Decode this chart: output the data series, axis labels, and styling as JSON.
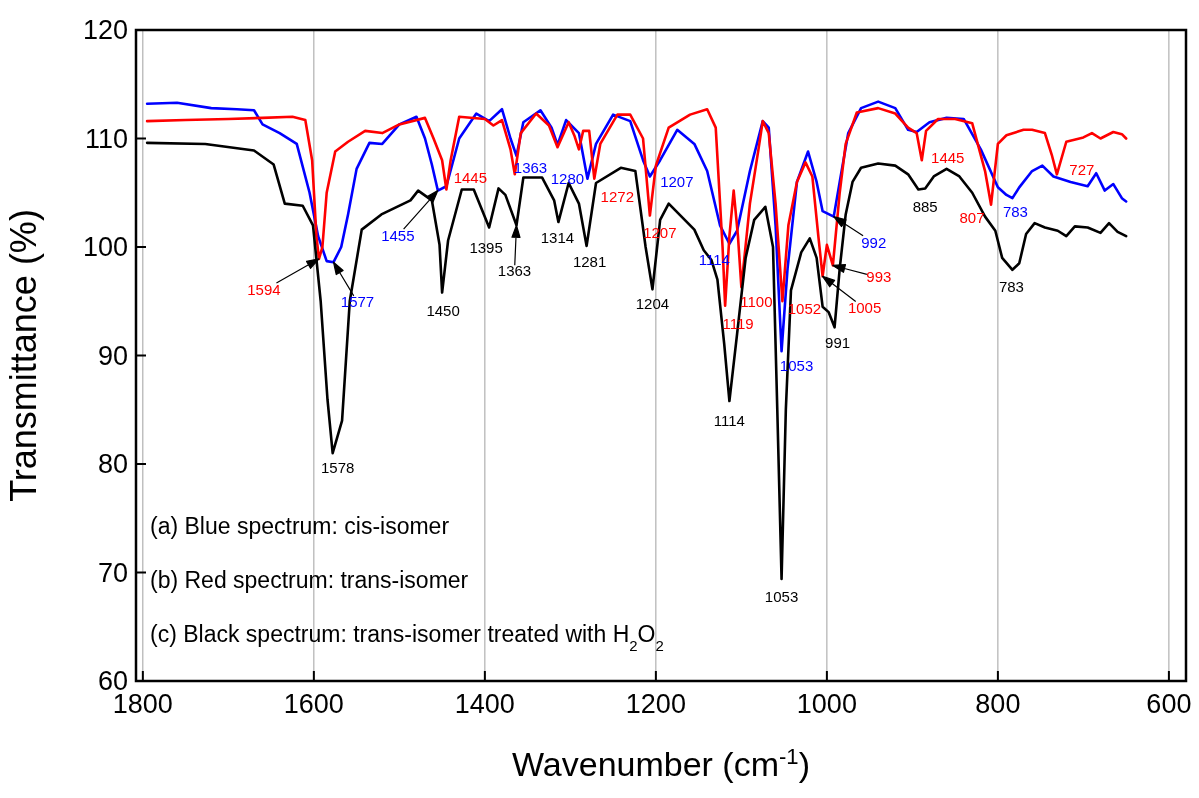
{
  "chart_data": {
    "type": "line",
    "xlabel": "Wavenumber (cm$^{-1}$)",
    "ylabel": "Transmittance (%)",
    "xlim": [
      1808,
      580
    ],
    "ylim": [
      60,
      120
    ],
    "xticks": [
      1800,
      1600,
      1400,
      1200,
      1000,
      800,
      600
    ],
    "yticks": [
      60,
      70,
      80,
      90,
      100,
      110,
      120
    ],
    "grid": "x",
    "marker": "none",
    "line_style": "solid",
    "series": [
      {
        "color": "#0000ff",
        "x": [
          1795,
          1760,
          1720,
          1690,
          1670,
          1660,
          1640,
          1620,
          1605,
          1595,
          1585,
          1577,
          1568,
          1560,
          1550,
          1535,
          1520,
          1500,
          1480,
          1470,
          1462,
          1455,
          1445,
          1430,
          1410,
          1395,
          1380,
          1370,
          1363,
          1355,
          1335,
          1322,
          1315,
          1305,
          1290,
          1280,
          1270,
          1250,
          1230,
          1215,
          1207,
          1195,
          1175,
          1155,
          1140,
          1125,
          1114,
          1105,
          1090,
          1075,
          1068,
          1060,
          1053,
          1046,
          1035,
          1022,
          1012,
          1005,
          992,
          985,
          975,
          960,
          940,
          920,
          905,
          895,
          880,
          860,
          840,
          820,
          800,
          790,
          783,
          775,
          760,
          748,
          735,
          715,
          695,
          685,
          675,
          665,
          655,
          650
        ],
        "values": [
          113.2,
          113.3,
          112.8,
          112.7,
          112.6,
          111.3,
          110.5,
          109.5,
          105,
          101,
          98.7,
          98.6,
          100,
          103,
          107.2,
          109.6,
          109.5,
          111.3,
          112,
          110,
          107.6,
          105.2,
          105.6,
          110,
          112.3,
          111.6,
          112.7,
          110,
          108.4,
          111.5,
          112.6,
          111,
          109.4,
          111.7,
          110.5,
          106.3,
          109.5,
          112.2,
          111.6,
          108,
          106.5,
          108,
          110.8,
          109.5,
          107,
          102,
          100.3,
          101.5,
          107,
          111.6,
          111,
          102,
          90.4,
          98,
          106,
          108.8,
          106,
          103.3,
          102.8,
          106,
          110.5,
          112.8,
          113.4,
          112.8,
          110.8,
          110.6,
          111.5,
          111.9,
          111.8,
          109,
          105.5,
          104.8,
          104.5,
          105.5,
          107,
          107.5,
          106.5,
          106,
          105.6,
          106.8,
          105.2,
          105.8,
          104.5,
          104.2
        ]
      },
      {
        "color": "#ff0000",
        "x": [
          1795,
          1750,
          1700,
          1660,
          1625,
          1610,
          1602,
          1597,
          1594,
          1590,
          1585,
          1575,
          1560,
          1540,
          1520,
          1500,
          1470,
          1460,
          1450,
          1445,
          1440,
          1430,
          1400,
          1390,
          1380,
          1370,
          1365,
          1358,
          1340,
          1325,
          1315,
          1302,
          1295,
          1290,
          1285,
          1278,
          1272,
          1265,
          1245,
          1230,
          1215,
          1207,
          1200,
          1185,
          1160,
          1140,
          1130,
          1122,
          1119,
          1114,
          1109,
          1104,
          1100,
          1090,
          1080,
          1075,
          1068,
          1060,
          1052,
          1045,
          1035,
          1025,
          1017,
          1010,
          1005,
          1000,
          993,
          985,
          978,
          965,
          940,
          920,
          905,
          895,
          889,
          884,
          870,
          850,
          830,
          815,
          808,
          800,
          790,
          770,
          760,
          745,
          737,
          731,
          720,
          700,
          690,
          680,
          665,
          655,
          650
        ],
        "values": [
          111.6,
          111.7,
          111.8,
          111.9,
          112,
          111.7,
          108,
          101,
          98.9,
          100,
          105,
          108.8,
          109.7,
          110.7,
          110.5,
          111.3,
          111.9,
          110,
          108,
          105.3,
          108,
          112,
          111.8,
          111.2,
          111.7,
          109,
          106.7,
          110.5,
          112.3,
          111.2,
          109.2,
          111.5,
          110.2,
          109,
          110.7,
          110.7,
          106.3,
          109.5,
          112.2,
          112.2,
          110,
          102.9,
          107.5,
          111,
          112.2,
          112.7,
          111,
          100,
          94.6,
          101,
          105.2,
          101,
          96.3,
          104,
          109,
          111.6,
          110.5,
          104,
          95,
          102,
          106,
          107.8,
          106.5,
          101,
          97.3,
          100.2,
          98.3,
          105,
          109.5,
          112.4,
          112.8,
          112.3,
          111,
          110.5,
          108,
          110.7,
          111.8,
          111.8,
          111.4,
          107,
          103.9,
          109.5,
          110.3,
          110.8,
          110.8,
          110.5,
          108.5,
          106.7,
          109.7,
          110.1,
          110.5,
          110,
          110.6,
          110.4,
          110
        ]
      },
      {
        "color": "#000000",
        "x": [
          1795,
          1727,
          1670,
          1647,
          1634,
          1613,
          1601,
          1592,
          1584,
          1578,
          1567,
          1558,
          1544,
          1521,
          1487,
          1478,
          1462,
          1453,
          1450,
          1443,
          1427,
          1413,
          1395,
          1384,
          1376,
          1363,
          1355,
          1333,
          1319,
          1314,
          1302,
          1290,
          1281,
          1270,
          1241,
          1224,
          1212,
          1204,
          1195,
          1185,
          1155,
          1144,
          1135,
          1128,
          1120,
          1114,
          1105,
          1095,
          1085,
          1072,
          1063,
          1058,
          1053,
          1048,
          1042,
          1030,
          1020,
          1012,
          1005,
          998,
          991,
          985,
          978,
          970,
          960,
          940,
          920,
          905,
          893,
          885,
          875,
          860,
          845,
          830,
          815,
          803,
          795,
          783,
          775,
          767,
          757,
          745,
          730,
          720,
          710,
          695,
          680,
          670,
          660,
          650
        ],
        "values": [
          109.6,
          109.5,
          108.9,
          107.6,
          104,
          103.8,
          102,
          95,
          85.9,
          81,
          84,
          95,
          101.6,
          103,
          104.3,
          105.2,
          104.3,
          100.2,
          95.8,
          100.6,
          105.3,
          105.3,
          101.8,
          105.4,
          104.8,
          102,
          106.4,
          106.4,
          104.3,
          102.3,
          105.9,
          104,
          100.1,
          105.9,
          107.3,
          107,
          100,
          96.1,
          102.5,
          104,
          101.6,
          99.7,
          98.8,
          97,
          91,
          85.8,
          92,
          99,
          102.5,
          103.7,
          100,
          85,
          69.4,
          85,
          96,
          99.5,
          100.8,
          99,
          94.5,
          94,
          92.6,
          98,
          103,
          106,
          107.3,
          107.7,
          107.5,
          106.7,
          105.3,
          105.4,
          106.5,
          107.2,
          106.5,
          105,
          102.8,
          101.5,
          99,
          97.9,
          98.5,
          101.2,
          102.2,
          101.8,
          101.5,
          101,
          101.9,
          101.8,
          101.3,
          102.2,
          101.4,
          101
        ]
      }
    ],
    "annotations": [
      {
        "text": "1578",
        "x": 1578,
        "y": 81
      },
      {
        "text": "1450",
        "x": 1450,
        "y": 95.8
      },
      {
        "text": "1395",
        "x": 1395,
        "y": 101.8
      },
      {
        "text": "1363",
        "x": 1363,
        "y": 102
      },
      {
        "text": "1314",
        "x": 1314,
        "y": 102.3
      },
      {
        "text": "1281",
        "x": 1281,
        "y": 100.1
      },
      {
        "text": "1204",
        "x": 1204,
        "y": 96.1
      },
      {
        "text": "1114",
        "x": 1114,
        "y": 85.8
      },
      {
        "text": "1053",
        "x": 1053,
        "y": 69.4
      },
      {
        "text": "991",
        "x": 991,
        "y": 92.6
      },
      {
        "text": "885",
        "x": 885,
        "y": 105.4
      },
      {
        "text": "783",
        "x": 783,
        "y": 97.9
      },
      {
        "text": "1594",
        "x": 1594,
        "y": 98.9
      },
      {
        "text": "1445",
        "x": 1445,
        "y": 105.3
      },
      {
        "text": "1272",
        "x": 1272,
        "y": 106.3
      },
      {
        "text": "1207",
        "x": 1207,
        "y": 102.9
      },
      {
        "text": "1119",
        "x": 1119,
        "y": 94.6
      },
      {
        "text": "1100",
        "x": 1100,
        "y": 96.3
      },
      {
        "text": "1052",
        "x": 1052,
        "y": 95
      },
      {
        "text": "1005",
        "x": 1005,
        "y": 97.3
      },
      {
        "text": "993",
        "x": 993,
        "y": 98.3
      },
      {
        "text": "1445",
        "x": 889,
        "y": 108
      },
      {
        "text": "807",
        "x": 808,
        "y": 103.9
      },
      {
        "text": "727",
        "x": 731,
        "y": 106.7
      },
      {
        "text": "1577",
        "x": 1577,
        "y": 98.6
      },
      {
        "text": "1455",
        "x": 1455,
        "y": 105.2
      },
      {
        "text": "1363",
        "x": 1363,
        "y": 108.4
      },
      {
        "text": "1280",
        "x": 1280,
        "y": 106.3
      },
      {
        "text": "1207",
        "x": 1207,
        "y": 106.5
      },
      {
        "text": "1114",
        "x": 1114,
        "y": 100.3
      },
      {
        "text": "1053",
        "x": 1053,
        "y": 90.4
      },
      {
        "text": "992",
        "x": 992,
        "y": 102.8
      },
      {
        "text": "783",
        "x": 783,
        "y": 104.5
      },
      "(a) Blue spectrum: cis-isomer",
      "(b) Red spectrum: trans-isomer",
      "(c) Black spectrum: trans-isomer treated with H$_{2}$O$_{2}$"
    ]
  }
}
